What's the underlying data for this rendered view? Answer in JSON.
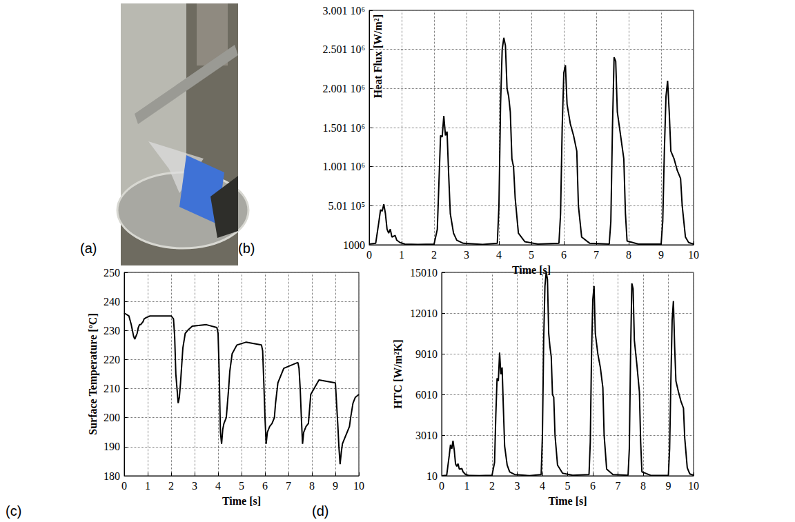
{
  "photo": {
    "label": "(a)"
  },
  "chart_data": [
    {
      "type": "line",
      "panel": "(b)",
      "xlabel": "Time [s]",
      "ylabel": "Heat Flux [W/m²]",
      "color": "#000000",
      "grid": true,
      "xlim": [
        0,
        10
      ],
      "xticks": [
        0,
        1,
        2,
        3,
        4,
        5,
        6,
        7,
        8,
        9,
        10
      ],
      "ylim": [
        1000,
        3001000
      ],
      "yticks": [
        1000,
        {
          "value": 501000,
          "label": "5.01 10⁵"
        },
        {
          "value": 1001000,
          "label": "1.001 10⁶"
        },
        {
          "value": 1501000,
          "label": "1.501 10⁶"
        },
        {
          "value": 2001000,
          "label": "2.001 10⁶"
        },
        {
          "value": 2501000,
          "label": "2.501 10⁶"
        },
        {
          "value": 3001000,
          "label": "3.001 10⁶"
        }
      ],
      "x": [
        0,
        0.2,
        0.3,
        0.35,
        0.4,
        0.45,
        0.5,
        0.55,
        0.6,
        0.65,
        0.7,
        0.8,
        0.85,
        0.95,
        1.1,
        1.5,
        2.0,
        2.1,
        2.15,
        2.2,
        2.25,
        2.3,
        2.35,
        2.4,
        2.45,
        2.5,
        2.6,
        2.7,
        2.9,
        3.5,
        3.95,
        4.0,
        4.05,
        4.1,
        4.15,
        4.2,
        4.25,
        4.3,
        4.35,
        4.4,
        4.45,
        4.5,
        4.6,
        4.8,
        5.2,
        5.85,
        5.9,
        5.95,
        6.0,
        6.05,
        6.1,
        6.2,
        6.3,
        6.4,
        6.45,
        6.55,
        6.8,
        7.4,
        7.45,
        7.5,
        7.55,
        7.6,
        7.65,
        7.75,
        7.85,
        7.9,
        7.95,
        8.3,
        9.0,
        9.05,
        9.1,
        9.15,
        9.2,
        9.25,
        9.3,
        9.4,
        9.5,
        9.6,
        9.65,
        9.75,
        9.85,
        10
      ],
      "values": [
        10000,
        20000,
        300000,
        450000,
        430000,
        520000,
        400000,
        200000,
        150000,
        200000,
        100000,
        120000,
        60000,
        30000,
        10000,
        5000,
        10000,
        200000,
        800000,
        1400000,
        1380000,
        1650000,
        1400000,
        1450000,
        900000,
        400000,
        150000,
        60000,
        20000,
        5000,
        20000,
        500000,
        1800000,
        2500000,
        2650000,
        2550000,
        2000000,
        1900000,
        1700000,
        1100000,
        1000000,
        600000,
        150000,
        40000,
        10000,
        20000,
        400000,
        1500000,
        2200000,
        2300000,
        1800000,
        1550000,
        1400000,
        1200000,
        500000,
        100000,
        20000,
        10000,
        300000,
        1500000,
        2400000,
        2350000,
        1700000,
        1400000,
        1100000,
        400000,
        50000,
        10000,
        10000,
        300000,
        1200000,
        1900000,
        2100000,
        1700000,
        1200000,
        1100000,
        950000,
        850000,
        500000,
        100000,
        30000,
        10000
      ]
    },
    {
      "type": "line",
      "panel": "(c)",
      "xlabel": "Time [s]",
      "ylabel": "Surface Temperature [ºC]",
      "color": "#000000",
      "grid": true,
      "xlim": [
        0,
        10
      ],
      "xticks": [
        0,
        1,
        2,
        3,
        4,
        5,
        6,
        7,
        8,
        9,
        10
      ],
      "ylim": [
        180,
        250
      ],
      "yticks": [
        180,
        190,
        200,
        210,
        220,
        230,
        240,
        250
      ],
      "x": [
        0,
        0.2,
        0.3,
        0.35,
        0.4,
        0.45,
        0.5,
        0.55,
        0.6,
        0.65,
        0.7,
        0.8,
        0.85,
        0.95,
        1.1,
        1.5,
        2.0,
        2.1,
        2.15,
        2.2,
        2.25,
        2.3,
        2.35,
        2.4,
        2.45,
        2.5,
        2.6,
        2.7,
        2.9,
        3.5,
        3.95,
        4.0,
        4.05,
        4.1,
        4.15,
        4.2,
        4.25,
        4.3,
        4.35,
        4.4,
        4.45,
        4.5,
        4.6,
        4.8,
        5.2,
        5.85,
        5.9,
        5.95,
        6.0,
        6.05,
        6.1,
        6.2,
        6.3,
        6.4,
        6.45,
        6.55,
        6.8,
        7.4,
        7.45,
        7.5,
        7.55,
        7.6,
        7.65,
        7.75,
        7.85,
        7.9,
        7.95,
        8.3,
        9.0,
        9.05,
        9.1,
        9.15,
        9.2,
        9.25,
        9.3,
        9.4,
        9.5,
        9.6,
        9.65,
        9.75,
        9.85,
        10
      ],
      "values": [
        236,
        235,
        232,
        230,
        228,
        227,
        228,
        229,
        231,
        232,
        232,
        233,
        234,
        234.5,
        235,
        235,
        235,
        234,
        228,
        215,
        210,
        205,
        207,
        212,
        218,
        224,
        229,
        230,
        231.5,
        232,
        231,
        229,
        215,
        195,
        191,
        196,
        198,
        199,
        200,
        205,
        210,
        216,
        222,
        225,
        226,
        225,
        223,
        212,
        200,
        191,
        195,
        197,
        198,
        200,
        205,
        212,
        217,
        219,
        217,
        210,
        200,
        191,
        195,
        197,
        198,
        203,
        208,
        213,
        212,
        205,
        198,
        190,
        184,
        188,
        191,
        193,
        195,
        197,
        200,
        205,
        207,
        208
      ]
    },
    {
      "type": "line",
      "panel": "(d)",
      "xlabel": "Time [s]",
      "ylabel": "HTC [W/m²K]",
      "color": "#000000",
      "grid": true,
      "xlim": [
        0,
        10
      ],
      "xticks": [
        0,
        1,
        2,
        3,
        4,
        5,
        6,
        7,
        8,
        9,
        10
      ],
      "ylim": [
        10,
        15010
      ],
      "yticks": [
        10,
        3010,
        6010,
        9010,
        12010,
        15010
      ],
      "x": [
        0,
        0.2,
        0.3,
        0.35,
        0.4,
        0.45,
        0.5,
        0.55,
        0.6,
        0.65,
        0.7,
        0.8,
        0.85,
        0.95,
        1.1,
        1.5,
        2.0,
        2.1,
        2.15,
        2.2,
        2.25,
        2.3,
        2.35,
        2.4,
        2.45,
        2.5,
        2.6,
        2.7,
        2.9,
        3.5,
        3.95,
        4.0,
        4.05,
        4.1,
        4.15,
        4.2,
        4.25,
        4.3,
        4.35,
        4.4,
        4.45,
        4.5,
        4.6,
        4.8,
        5.2,
        5.85,
        5.9,
        5.95,
        6.0,
        6.05,
        6.1,
        6.2,
        6.3,
        6.4,
        6.45,
        6.55,
        6.8,
        7.4,
        7.45,
        7.5,
        7.55,
        7.6,
        7.65,
        7.75,
        7.85,
        7.9,
        7.95,
        8.3,
        9.0,
        9.05,
        9.1,
        9.15,
        9.2,
        9.25,
        9.3,
        9.4,
        9.5,
        9.6,
        9.65,
        9.75,
        9.85,
        10
      ],
      "values": [
        10,
        50,
        1500,
        2300,
        2000,
        2600,
        1900,
        900,
        700,
        900,
        500,
        550,
        300,
        100,
        30,
        20,
        50,
        1000,
        4500,
        7200,
        7000,
        9100,
        7500,
        8000,
        5000,
        2200,
        800,
        300,
        100,
        20,
        100,
        3000,
        10000,
        14000,
        15000,
        14500,
        10500,
        9500,
        8800,
        6000,
        5800,
        3000,
        800,
        200,
        50,
        100,
        2500,
        9000,
        13000,
        14000,
        10500,
        9000,
        8000,
        6500,
        3000,
        500,
        100,
        50,
        2000,
        9000,
        14200,
        13800,
        10000,
        8200,
        6200,
        2500,
        300,
        40,
        50,
        2000,
        7000,
        11500,
        12900,
        9500,
        7000,
        6200,
        5500,
        5000,
        2800,
        600,
        150,
        50
      ]
    }
  ]
}
